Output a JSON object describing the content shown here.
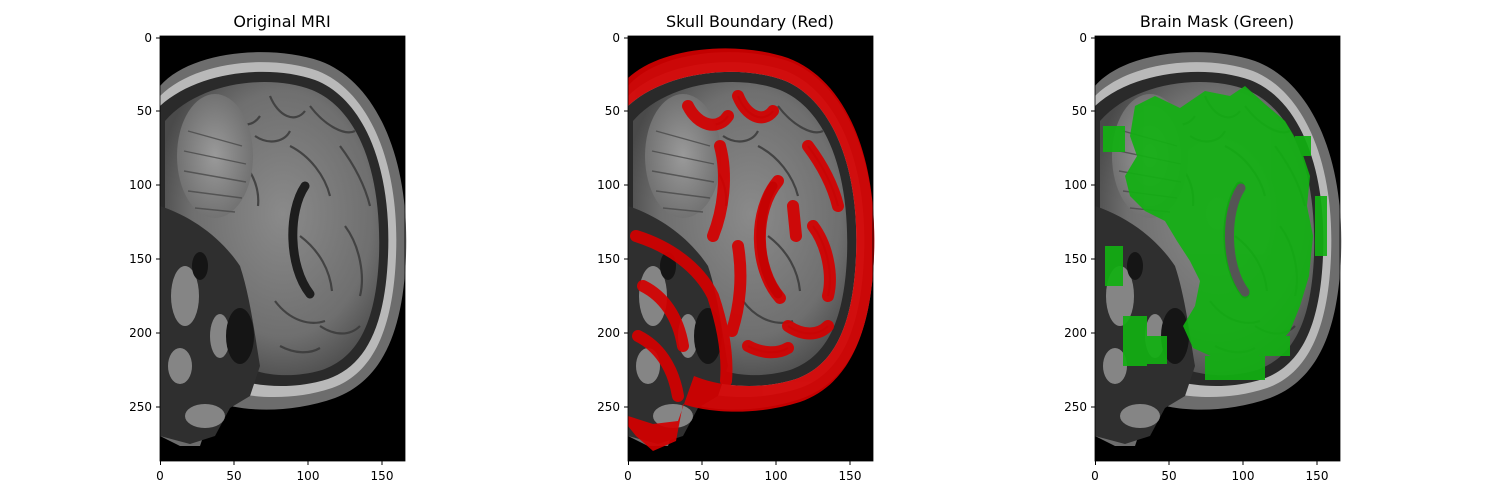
{
  "panels": [
    {
      "id": "original",
      "title": "Original MRI",
      "overlay": "none",
      "x_ticks": [
        "0",
        "50",
        "100",
        "150"
      ],
      "y_ticks": [
        "0",
        "50",
        "100",
        "150",
        "200",
        "250"
      ]
    },
    {
      "id": "skull",
      "title": "Skull Boundary (Red)",
      "overlay": "red",
      "x_ticks": [
        "0",
        "50",
        "100",
        "150"
      ],
      "y_ticks": [
        "0",
        "50",
        "100",
        "150",
        "200",
        "250"
      ]
    },
    {
      "id": "brain",
      "title": "Brain Mask (Green)",
      "overlay": "green",
      "x_ticks": [
        "0",
        "50",
        "100",
        "150"
      ],
      "y_ticks": [
        "0",
        "50",
        "100",
        "150",
        "200",
        "250"
      ]
    }
  ],
  "colors": {
    "red_overlay": "#d40000",
    "green_overlay": "#12b012",
    "background": "#000000"
  }
}
